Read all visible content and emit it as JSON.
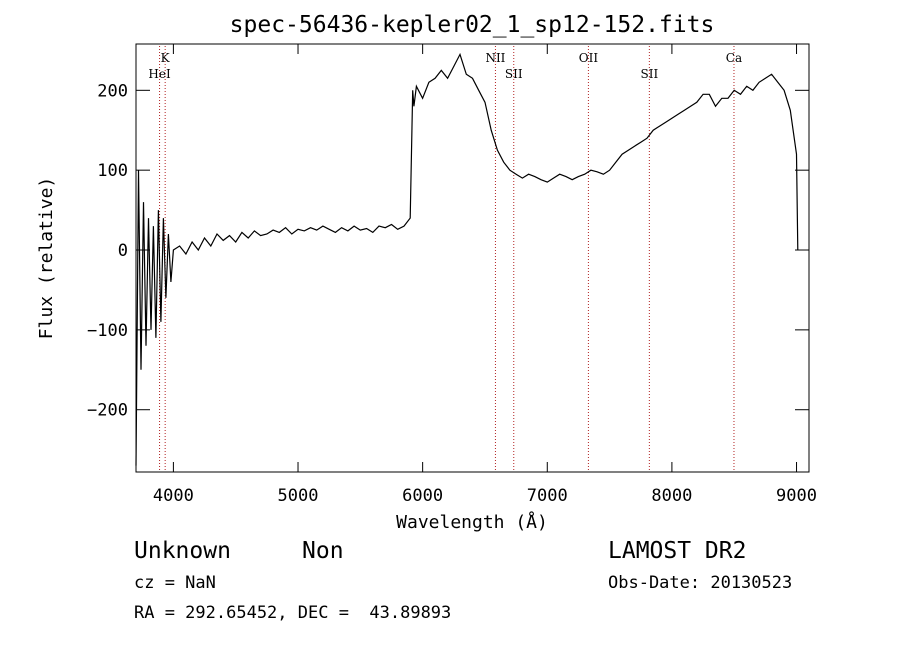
{
  "chart_data": {
    "type": "line",
    "title": "spec-56436-kepler02_1_sp12-152.fits",
    "xlabel": "Wavelength (Å)",
    "ylabel": "Flux (relative)",
    "xlim": [
      3700,
      9100
    ],
    "ylim": [
      -278,
      258
    ],
    "xticks": [
      4000,
      5000,
      6000,
      7000,
      8000,
      9000
    ],
    "yticks": [
      -200,
      -100,
      0,
      100,
      200
    ],
    "grid": false,
    "line_color": "#000000",
    "marker_color": "#b22222",
    "series": [
      {
        "x": [
          3700,
          3720,
          3740,
          3760,
          3780,
          3800,
          3820,
          3840,
          3860,
          3880,
          3900,
          3920,
          3940,
          3960,
          3980,
          4000,
          4050,
          4100,
          4150,
          4200,
          4250,
          4300,
          4350,
          4400,
          4450,
          4500,
          4550,
          4600,
          4650,
          4700,
          4750,
          4800,
          4850,
          4900,
          4950,
          5000,
          5050,
          5100,
          5150,
          5200,
          5250,
          5300,
          5350,
          5400,
          5450,
          5500,
          5550,
          5600,
          5650,
          5700,
          5750,
          5800,
          5850,
          5900,
          5920,
          5930,
          5950,
          6000,
          6050,
          6100,
          6150,
          6200,
          6250,
          6300,
          6350,
          6400,
          6450,
          6500,
          6550,
          6600,
          6650,
          6700,
          6750,
          6800,
          6850,
          6900,
          6950,
          7000,
          7050,
          7100,
          7150,
          7200,
          7250,
          7300,
          7350,
          7400,
          7450,
          7500,
          7550,
          7600,
          7650,
          7700,
          7750,
          7800,
          7850,
          7900,
          7950,
          8000,
          8050,
          8100,
          8150,
          8200,
          8250,
          8300,
          8350,
          8400,
          8450,
          8500,
          8550,
          8600,
          8650,
          8700,
          8750,
          8800,
          8850,
          8900,
          8950,
          9000,
          9010
        ],
        "y": [
          -270,
          100,
          -150,
          60,
          -120,
          40,
          -100,
          30,
          -110,
          50,
          -90,
          40,
          -60,
          20,
          -40,
          0,
          5,
          -5,
          10,
          0,
          15,
          5,
          20,
          12,
          18,
          10,
          22,
          15,
          24,
          18,
          20,
          25,
          22,
          28,
          20,
          26,
          24,
          28,
          25,
          30,
          26,
          22,
          28,
          24,
          30,
          25,
          27,
          22,
          30,
          28,
          32,
          26,
          30,
          40,
          200,
          180,
          205,
          190,
          210,
          215,
          225,
          215,
          230,
          245,
          220,
          215,
          200,
          185,
          150,
          125,
          110,
          100,
          95,
          90,
          95,
          92,
          88,
          85,
          90,
          95,
          92,
          88,
          92,
          95,
          100,
          98,
          95,
          100,
          110,
          120,
          125,
          130,
          135,
          140,
          150,
          155,
          160,
          165,
          170,
          175,
          180,
          185,
          195,
          195,
          180,
          190,
          190,
          200,
          195,
          205,
          200,
          210,
          215,
          220,
          210,
          200,
          175,
          120,
          0
        ]
      }
    ],
    "lines": [
      {
        "label": "K",
        "x": 3934
      },
      {
        "label": "HeI",
        "x": 3889
      },
      {
        "label": "NII",
        "x": 6584
      },
      {
        "label": "SII",
        "x": 6731
      },
      {
        "label": "OII",
        "x": 7330
      },
      {
        "label": "SII",
        "x": 7819
      },
      {
        "label": "Ca",
        "x": 8498
      }
    ]
  },
  "info": {
    "class": "Unknown",
    "subclass": "Non",
    "survey": "LAMOST DR2",
    "cz": "cz = NaN",
    "obs_date": "Obs-Date: 20130523",
    "coords": "RA = 292.65452, DEC =  43.89893"
  }
}
